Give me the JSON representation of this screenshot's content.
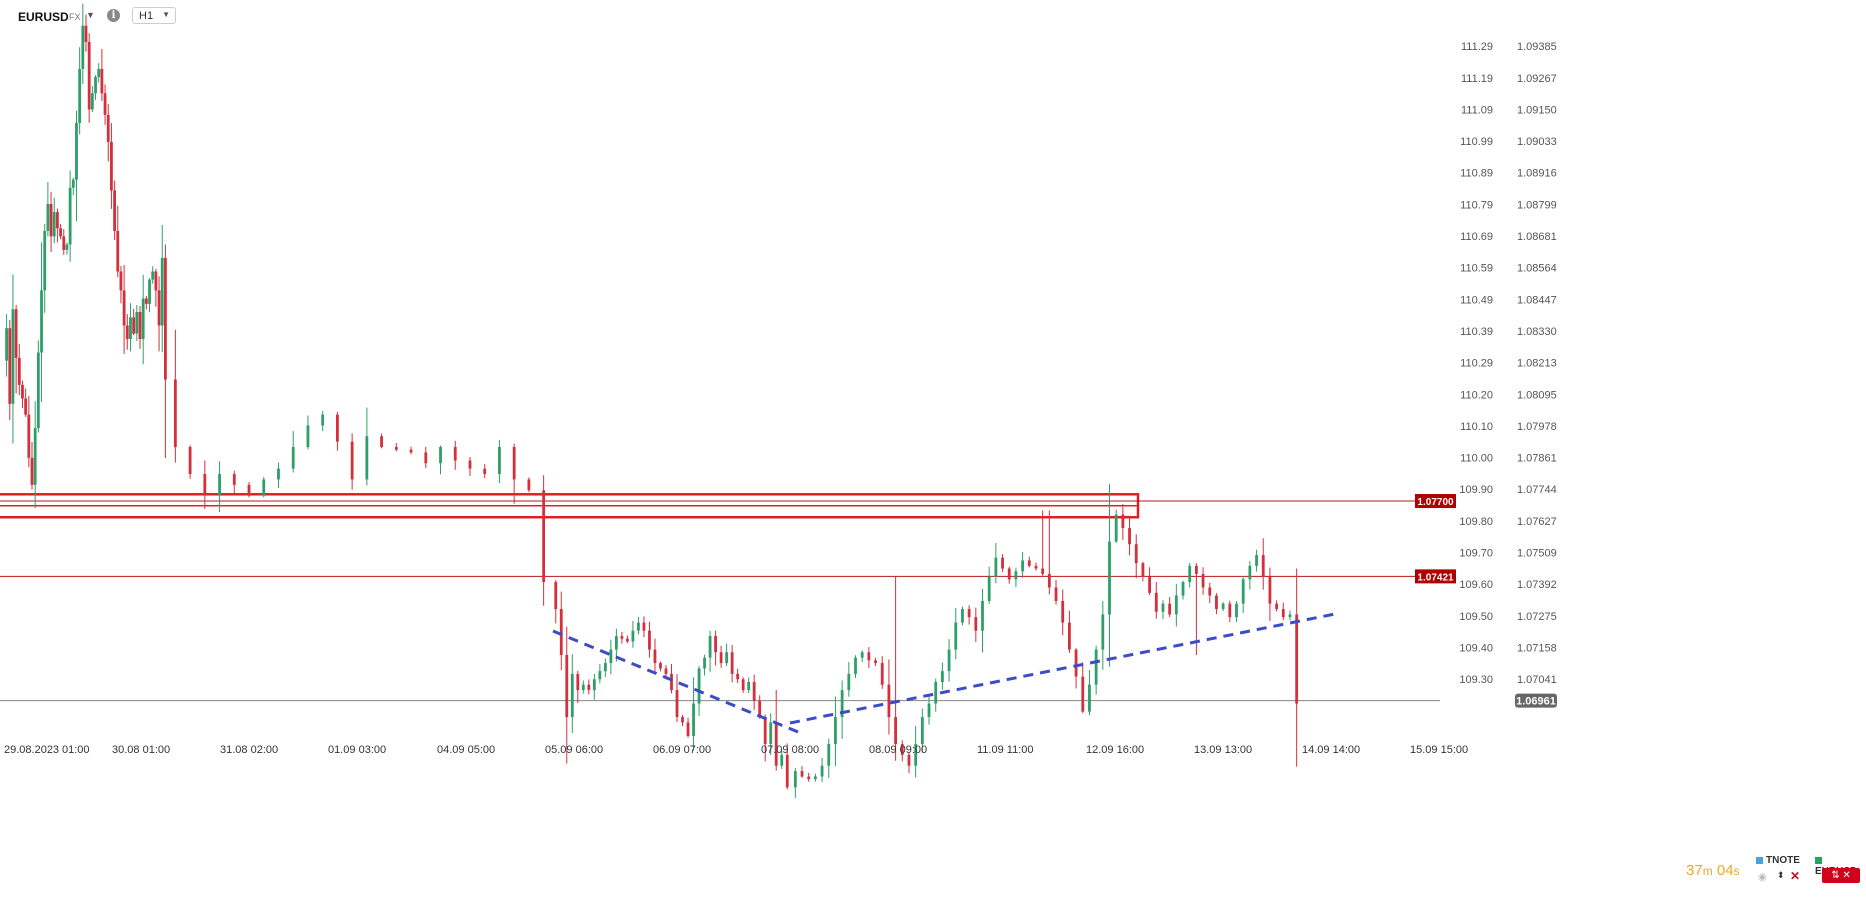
{
  "toolbar": {
    "symbol": "EURUSD",
    "type_tag": "FX",
    "timeframe": "H1",
    "info_icon": "info-icon"
  },
  "chart_data": {
    "type": "candlestick",
    "symbol": "EURUSD",
    "timeframe": "H1",
    "ylim": [
      1.069,
      1.0947
    ],
    "right_axis_ticks": [
      "1.09385",
      "1.09267",
      "1.09150",
      "1.09033",
      "1.08916",
      "1.08799",
      "1.08681",
      "1.08564",
      "1.08447",
      "1.08330",
      "1.08213",
      "1.08095",
      "1.07978",
      "1.07861",
      "1.07744",
      "1.07627",
      "1.07509",
      "1.07392",
      "1.07275",
      "1.07158",
      "1.07041"
    ],
    "left_axis_ticks": [
      "111.29",
      "111.19",
      "111.09",
      "110.99",
      "110.89",
      "110.79",
      "110.69",
      "110.59",
      "110.49",
      "110.39",
      "110.29",
      "110.20",
      "110.10",
      "110.00",
      "109.90",
      "109.80",
      "109.70",
      "109.60",
      "109.50",
      "109.40",
      "109.30"
    ],
    "x_tick_labels": [
      "29.08.2023",
      "01:00",
      "30.08 01:00",
      "31.08 02:00",
      "01.09 03:00",
      "04.09 05:00",
      "05.09 06:00",
      "06.09 07:00",
      "07.09 08:00",
      "08.09 09:00",
      "11.09 11:00",
      "12.09 16:00",
      "13.09 13:00",
      "14.09 14:00",
      "15.09 15:00"
    ],
    "price_labels": [
      {
        "text": "1.07700",
        "price": 1.077,
        "color": "#b00000"
      },
      {
        "text": "1.07421",
        "price": 1.07421,
        "color": "#b00000"
      },
      {
        "text": "1.06961",
        "price": 1.06961,
        "color": "#666666"
      }
    ],
    "horizontal_lines": [
      1.077,
      1.07421,
      1.06961
    ],
    "zone": {
      "from": 1.0764,
      "to": 1.07725,
      "color": "#e02020"
    },
    "trendlines": [
      {
        "from": {
          "bar": 0,
          "price": 1.0728
        },
        "to": {
          "bar": 0,
          "price": 1.0694
        },
        "style": "dashed",
        "color": "#3c4bc8"
      },
      {
        "from": {
          "bar": 0,
          "price": 1.0694
        },
        "to": {
          "bar": 0,
          "price": 1.0728
        },
        "style": "dashed",
        "color": "#3c4bc8"
      }
    ],
    "segments": [
      [
        1.0822,
        1.0834,
        1.0806,
        1.0841,
        1.0823,
        1.0813,
        1.0808,
        1.0802,
        1.0786,
        1.0776,
        1.0797,
        1.0825,
        1.0848,
        1.087,
        1.088,
        1.0868,
        1.0877,
        1.0871,
        1.0868,
        1.0863,
        1.0865,
        1.0886,
        1.0889,
        1.091,
        1.093,
        1.0946,
        1.094,
        1.0915,
        1.0921,
        1.0927,
        1.093,
        1.0921,
        1.0913,
        1.0903,
        1.0885,
        1.087,
        1.0855,
        1.0848,
        1.0835,
        1.083,
        1.0838,
        1.0832,
        1.084,
        1.083,
        1.0845,
        1.0843,
        1.0852,
        1.0855,
        1.0848,
        1.0835,
        1.086,
        1.0815
      ],
      [
        1.0815,
        1.079,
        1.078,
        1.0772,
        1.078,
        1.0776,
        1.0772,
        1.0778,
        1.0782,
        1.079,
        1.0798,
        1.0802,
        1.0792,
        1.0778,
        1.0794,
        1.079,
        1.0789,
        1.0788,
        1.0784,
        1.079,
        1.0785,
        1.0782,
        1.078,
        1.079,
        1.0778,
        1.0774,
        1.074
      ],
      [
        1.074,
        1.073,
        1.0713,
        1.069,
        1.0706,
        1.07,
        1.0702,
        1.07,
        1.0704,
        1.0707,
        1.071,
        1.0715,
        1.072,
        1.0719,
        1.0718,
        1.0722,
        1.0725,
        1.0722,
        1.0715,
        1.071,
        1.0708,
        1.0706,
        1.07,
        1.069,
        1.0688,
        1.0683,
        1.0695,
        1.0708,
        1.0712,
        1.072,
        1.0714,
        1.071,
        1.0714,
        1.0706,
        1.0704,
        1.07,
        1.0703,
        1.0696,
        1.069,
        1.068,
        1.0688,
        1.0672,
        1.0676,
        1.0664
      ],
      [
        1.0664,
        1.067,
        1.0668,
        1.0667,
        1.0668,
        1.0672,
        1.068,
        1.069,
        1.07,
        1.0706,
        1.0712,
        1.0714,
        1.0711,
        1.071,
        1.0702,
        1.069,
        1.068,
        1.0676,
        1.0672,
        1.068,
        1.069,
        1.0695,
        1.0703,
        1.0707,
        1.0715,
        1.0725,
        1.073,
        1.0727,
        1.0722,
        1.0733,
        1.0742,
        1.0749,
        1.0745,
        1.0741,
        1.0744,
        1.0748,
        1.0746,
        1.0745,
        1.0743,
        1.0738,
        1.0733,
        1.0725,
        1.0715,
        1.0705,
        1.0692,
        1.0702,
        1.0715,
        1.0728,
        1.0755,
        1.0765,
        1.076,
        1.0754,
        1.0747,
        1.0742,
        1.0736,
        1.0729,
        1.0732,
        1.0728,
        1.0735,
        1.074,
        1.0746,
        1.0743,
        1.0738,
        1.0735,
        1.073,
        1.0732,
        1.0727,
        1.0732,
        1.0741,
        1.0746,
        1.075,
        1.0742,
        1.0732,
        1.073,
        1.0727,
        1.0728,
        1.0695
      ]
    ]
  },
  "footer": {
    "countdown_minutes": "37",
    "countdown_m_unit": "m",
    "countdown_seconds": "04",
    "countdown_s_unit": "s",
    "legend": [
      {
        "name": "TNOTE",
        "color": "#4aa3df"
      },
      {
        "name": "EURUSD",
        "color": "#26a65b"
      }
    ]
  },
  "colors": {
    "up": "#2e9e6a",
    "down": "#d32f3c",
    "grid_text": "#555555",
    "trend": "#3c4bc8"
  }
}
